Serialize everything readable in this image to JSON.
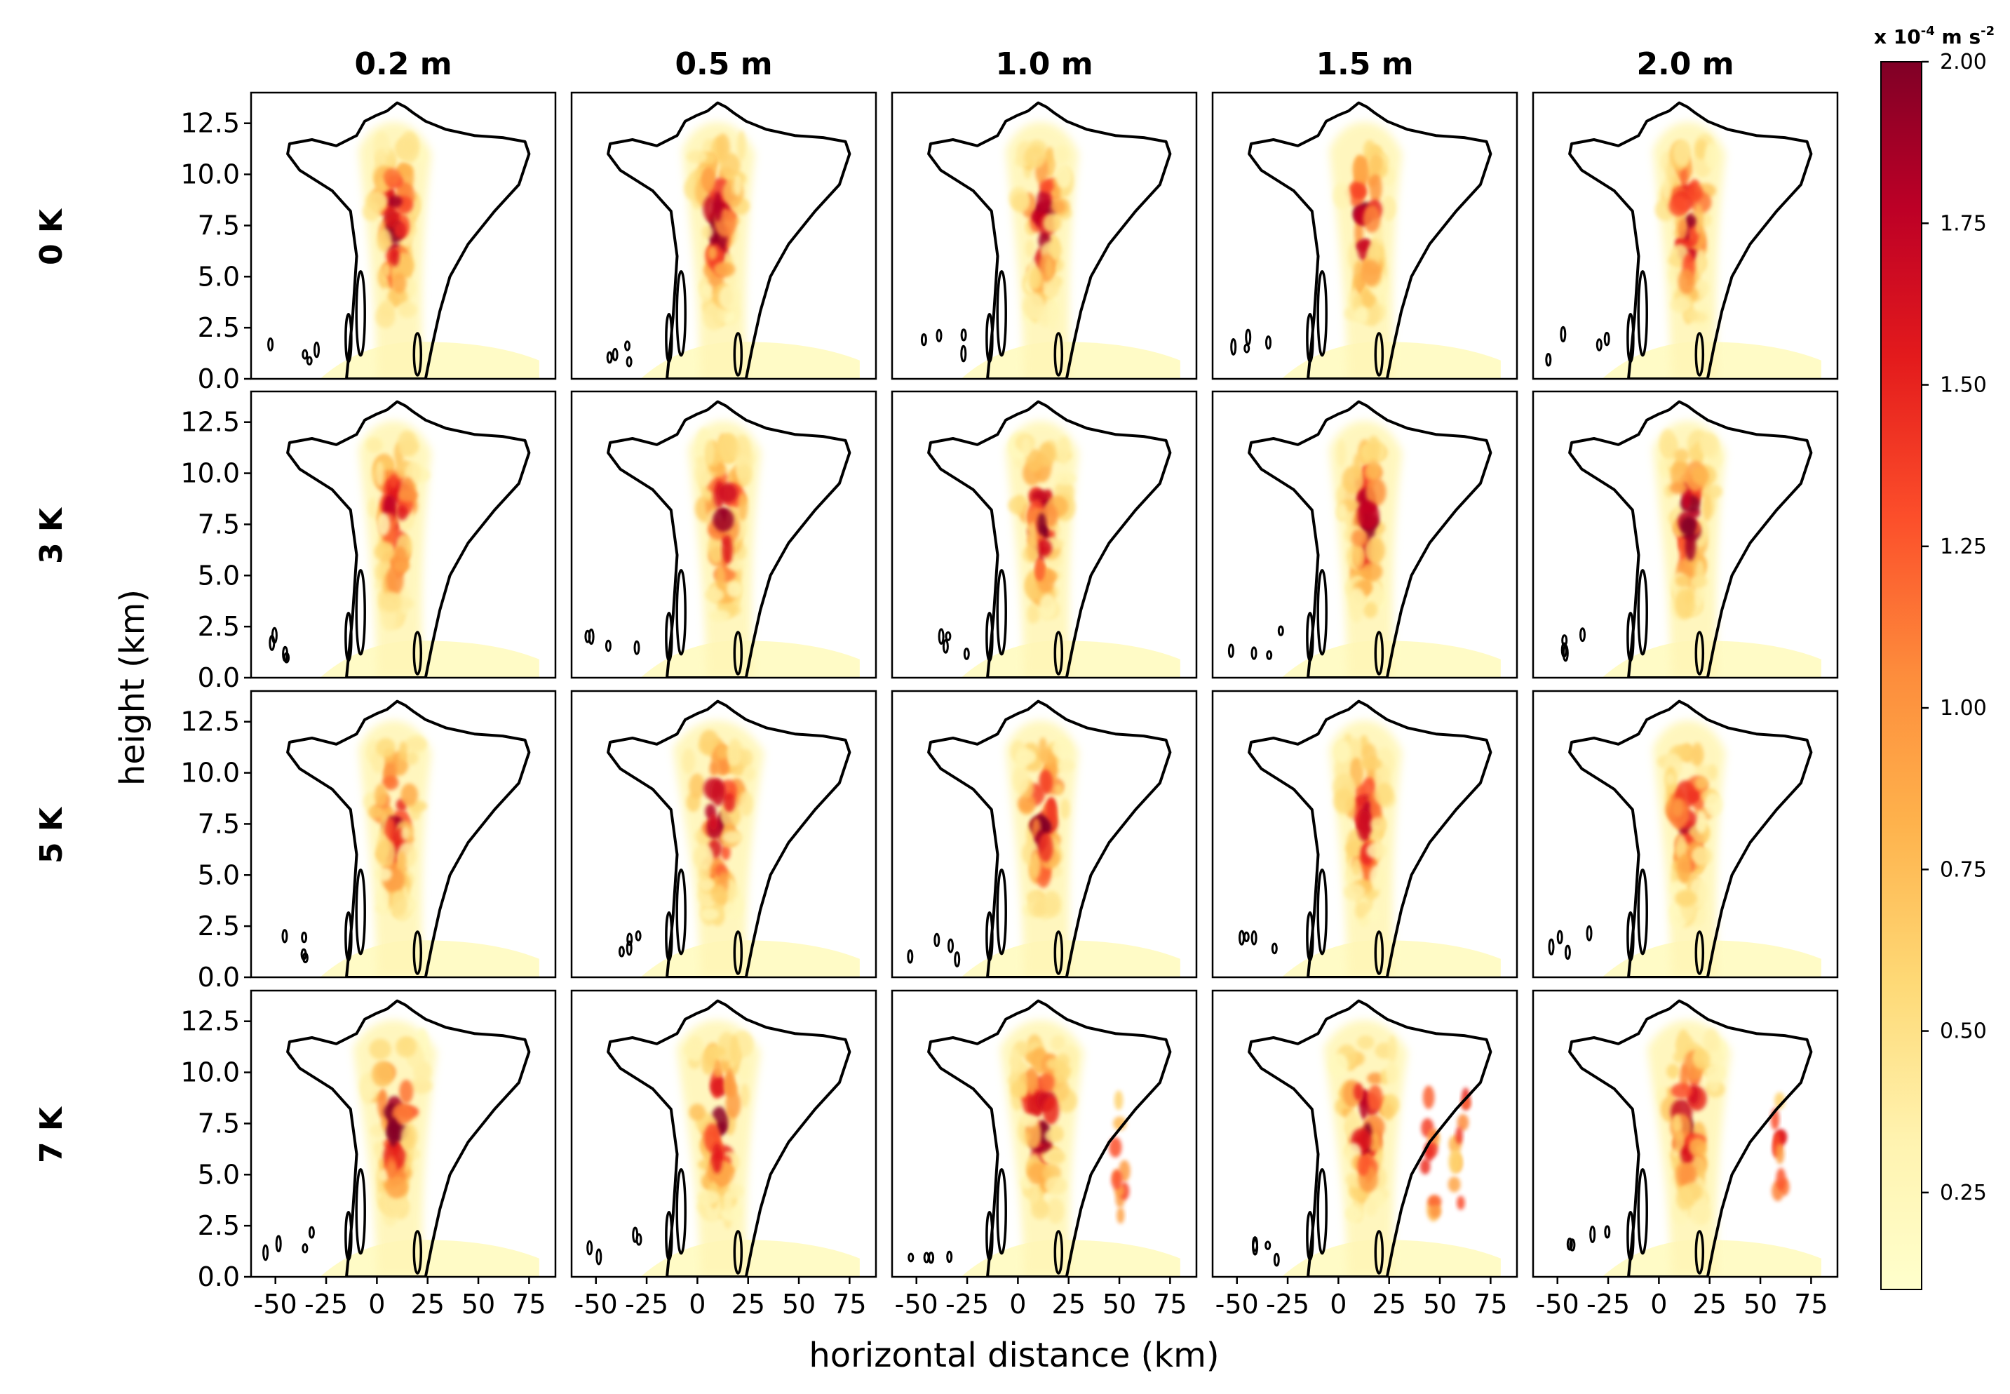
{
  "chart_data": {
    "type": "heatmap",
    "description_kind": "small-multiples contour/heatmap grid",
    "column_titles": [
      "0.2 m",
      "0.5 m",
      "1.0 m",
      "1.5 m",
      "2.0 m"
    ],
    "row_labels": [
      "0 K",
      "3 K",
      "5 K",
      "7 K"
    ],
    "xlabel": "horizontal distance (km)",
    "ylabel": "height (km)",
    "x_ticks": [
      -50,
      -25,
      0,
      25,
      50,
      75
    ],
    "x_tick_labels": [
      "-50",
      "-25",
      "0",
      "25",
      "50",
      "75"
    ],
    "xlim": [
      -62,
      88
    ],
    "y_ticks": [
      0.0,
      2.5,
      5.0,
      7.5,
      10.0,
      12.5
    ],
    "y_tick_labels": [
      "0.0",
      "2.5",
      "5.0",
      "7.5",
      "10.0",
      "12.5"
    ],
    "ylim": [
      0,
      14
    ],
    "colorbar": {
      "unit_label": "x 10",
      "unit_exponent": "-4",
      "unit_rest": " m s",
      "unit_rest_exponent": "-2",
      "ticks": [
        0.25,
        0.5,
        0.75,
        1.0,
        1.25,
        1.5,
        1.75,
        2.0
      ],
      "tick_labels": [
        "0.25",
        "0.50",
        "0.75",
        "1.00",
        "1.25",
        "1.50",
        "1.75",
        "2.00"
      ],
      "vmin": 0.1,
      "vmax": 2.0,
      "colormap": "YlOrRd",
      "colors": [
        "#ffffcc",
        "#fff3b0",
        "#fed976",
        "#feb24c",
        "#fd8d3c",
        "#fc4e2a",
        "#e31a1c",
        "#bd0026",
        "#800026"
      ]
    },
    "outline_color": "#000000"
  }
}
